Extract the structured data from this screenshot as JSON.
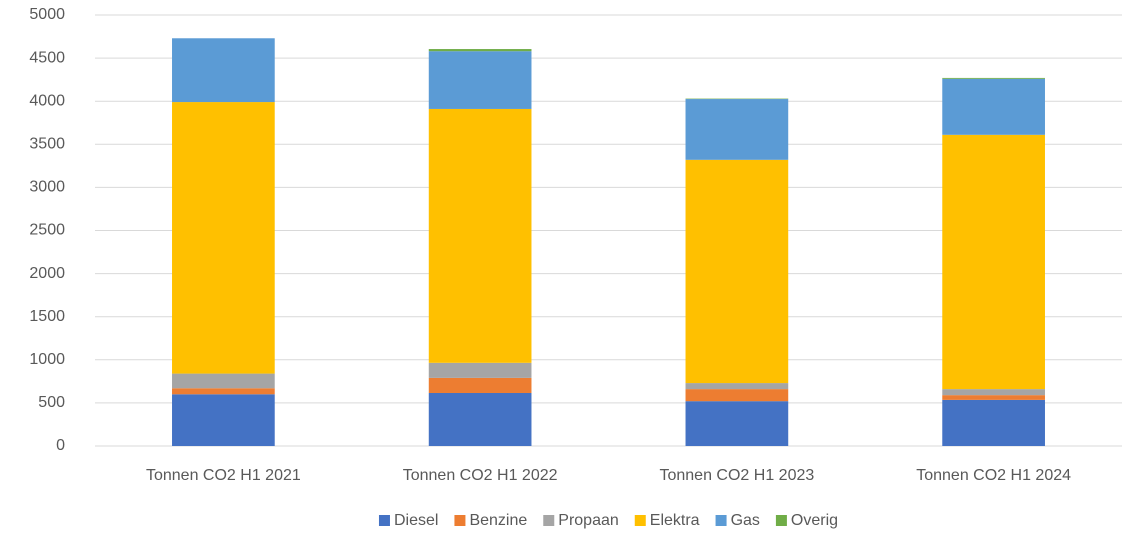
{
  "chart_data": {
    "type": "stacked_bar",
    "categories": [
      "Tonnen CO2 H1 2021",
      "Tonnen CO2 H1 2022",
      "Tonnen CO2 H1 2023",
      "Tonnen CO2 H1 2024"
    ],
    "series": [
      {
        "name": "Diesel",
        "color": "#4472c4",
        "values": [
          600,
          615,
          520,
          535
        ]
      },
      {
        "name": "Benzine",
        "color": "#ed7d31",
        "values": [
          70,
          175,
          140,
          55
        ]
      },
      {
        "name": "Propaan",
        "color": "#a5a5a5",
        "values": [
          170,
          175,
          70,
          70
        ]
      },
      {
        "name": "Elektra",
        "color": "#ffc000",
        "values": [
          3150,
          2945,
          2590,
          2950
        ]
      },
      {
        "name": "Gas",
        "color": "#5b9bd5",
        "values": [
          740,
          670,
          705,
          650
        ]
      },
      {
        "name": "Overig",
        "color": "#70ad47",
        "values": [
          0,
          25,
          5,
          10
        ]
      }
    ],
    "ylim": [
      0,
      5000
    ],
    "yticks": [
      0,
      500,
      1000,
      1500,
      2000,
      2500,
      3000,
      3500,
      4000,
      4500,
      5000
    ],
    "grid": true,
    "legend": "bottom"
  }
}
